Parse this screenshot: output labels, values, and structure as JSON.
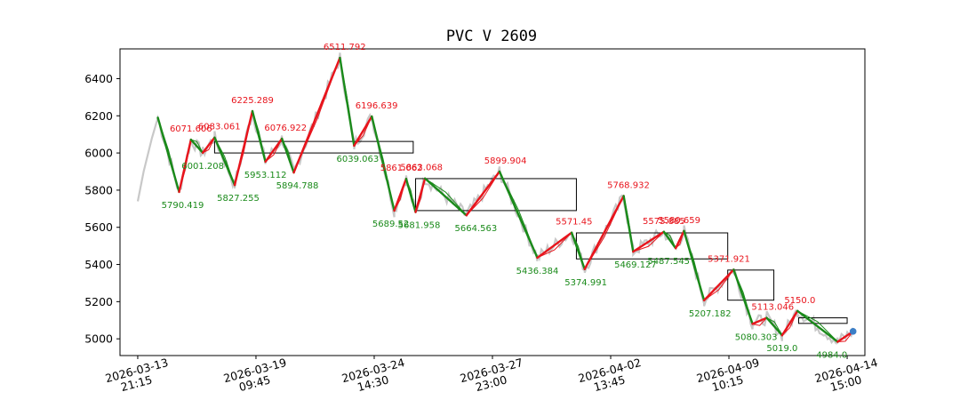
{
  "chart_data": {
    "type": "line",
    "title": "PVC V 2609",
    "xlabel": "",
    "ylabel": "",
    "ylim": [
      4910,
      6560
    ],
    "xlim": [
      -0.15,
      6.15
    ],
    "grid": false,
    "y_ticks": [
      5000,
      5200,
      5400,
      5600,
      5800,
      6000,
      6200,
      6400
    ],
    "x_ticks": [
      {
        "pos": 0,
        "label": [
          "2026-03-13",
          "21:15"
        ]
      },
      {
        "pos": 1,
        "label": [
          "2026-03-19",
          "09:45"
        ]
      },
      {
        "pos": 2,
        "label": [
          "2026-03-24",
          "14:30"
        ]
      },
      {
        "pos": 3,
        "label": [
          "2026-03-27",
          "23:00"
        ]
      },
      {
        "pos": 4,
        "label": [
          "2026-04-02",
          "13:45"
        ]
      },
      {
        "pos": 5,
        "label": [
          "2026-04-09",
          "10:15"
        ]
      },
      {
        "pos": 6,
        "label": [
          "2026-04-14",
          "15:00"
        ]
      }
    ],
    "colors": {
      "up": "#e8141c",
      "down": "#1a8a1a",
      "price": "#c8c8c8",
      "box": "#000000",
      "marker": "#3b7ec6"
    },
    "zigzag": [
      {
        "x": 0.17,
        "y": 6190
      },
      {
        "x": 0.35,
        "y": 5790.419,
        "label": "5790.419"
      },
      {
        "x": 0.45,
        "y": 6071.606,
        "label": "6071.606"
      },
      {
        "x": 0.55,
        "y": 6001.208,
        "label": "6001.208"
      },
      {
        "x": 0.65,
        "y": 6083.061,
        "label": "6083.061"
      },
      {
        "x": 0.82,
        "y": 5827.255,
        "label": "5827.255"
      },
      {
        "x": 0.97,
        "y": 6225.289,
        "label": "6225.289"
      },
      {
        "x": 1.08,
        "y": 5953.112,
        "label": "5953.112"
      },
      {
        "x": 1.22,
        "y": 6076.922,
        "label": "6076.922"
      },
      {
        "x": 1.32,
        "y": 5894.788,
        "label": "5894.788"
      },
      {
        "x": 1.71,
        "y": 6511.792,
        "label": "6511.792"
      },
      {
        "x": 1.83,
        "y": 6039.063,
        "label": "6039.063"
      },
      {
        "x": 1.98,
        "y": 6196.639,
        "label": "6196.639"
      },
      {
        "x": 2.17,
        "y": 5689.52,
        "label": "5689.52"
      },
      {
        "x": 2.27,
        "y": 5861.062,
        "label": "5861.062"
      },
      {
        "x": 2.35,
        "y": 5681.958,
        "label": "5681.958"
      },
      {
        "x": 2.43,
        "y": 5863.068,
        "label": "5863.068"
      },
      {
        "x": 2.78,
        "y": 5664.563,
        "label": "5664.563"
      },
      {
        "x": 3.06,
        "y": 5899.904,
        "label": "5899.904"
      },
      {
        "x": 3.38,
        "y": 5436.384,
        "label": "5436.384"
      },
      {
        "x": 3.67,
        "y": 5571.45,
        "label": "5571.45"
      },
      {
        "x": 3.78,
        "y": 5374.991,
        "label": "5374.991"
      },
      {
        "x": 4.11,
        "y": 5768.932,
        "label": "5768.932"
      },
      {
        "x": 4.19,
        "y": 5469.127,
        "label": "5469.127"
      },
      {
        "x": 4.45,
        "y": 5575.885,
        "label": "5575.885"
      },
      {
        "x": 4.55,
        "y": 5487.545,
        "label": "5487.545"
      },
      {
        "x": 4.62,
        "y": 5580.659,
        "label": "5580.659"
      },
      {
        "x": 4.79,
        "y": 5207.182,
        "label": "5207.182"
      },
      {
        "x": 5.04,
        "y": 5371.921,
        "label": "5371.921"
      },
      {
        "x": 5.2,
        "y": 5080.303,
        "label": "5080.303"
      },
      {
        "x": 5.32,
        "y": 5113.046,
        "label": "5113.046"
      },
      {
        "x": 5.45,
        "y": 5019.0,
        "label": "5019.0"
      },
      {
        "x": 5.58,
        "y": 5150.0,
        "label": "5150.0"
      },
      {
        "x": 5.92,
        "y": 4984.0,
        "label": "4984.0"
      },
      {
        "x": 6.05,
        "y": 5040
      }
    ],
    "annotations": [
      {
        "x": 0.45,
        "y": 6071.606,
        "text": "6071.606",
        "pos": "above",
        "dx": 0,
        "kind": "high"
      },
      {
        "x": 0.55,
        "y": 6001.208,
        "text": "6001.208",
        "pos": "below",
        "dx": 0,
        "kind": "low"
      },
      {
        "x": 0.69,
        "y": 6083.061,
        "text": "6083.061",
        "pos": "above",
        "dx": 0,
        "kind": "high"
      },
      {
        "x": 0.97,
        "y": 6225.289,
        "text": "6225.289",
        "pos": "above",
        "dx": 0,
        "kind": "high"
      },
      {
        "x": 0.38,
        "y": 5790.419,
        "text": "5790.419",
        "pos": "below",
        "dx": 0,
        "kind": "low"
      },
      {
        "x": 0.85,
        "y": 5827.255,
        "text": "5827.255",
        "pos": "below",
        "dx": 0,
        "kind": "low"
      },
      {
        "x": 1.08,
        "y": 5953.112,
        "text": "5953.112",
        "pos": "below",
        "dx": 0,
        "kind": "low"
      },
      {
        "x": 1.25,
        "y": 6076.922,
        "text": "6076.922",
        "pos": "above",
        "dx": 0,
        "kind": "high"
      },
      {
        "x": 1.35,
        "y": 5894.788,
        "text": "5894.788",
        "pos": "below",
        "dx": 0,
        "kind": "low"
      },
      {
        "x": 1.75,
        "y": 6511.792,
        "text": "6511.792",
        "pos": "above",
        "dx": 0,
        "kind": "high"
      },
      {
        "x": 1.86,
        "y": 6039.063,
        "text": "6039.063",
        "pos": "below",
        "dx": 0,
        "kind": "low"
      },
      {
        "x": 2.02,
        "y": 6196.639,
        "text": "6196.639",
        "pos": "above",
        "dx": 0,
        "kind": "high"
      },
      {
        "x": 2.23,
        "y": 5861.062,
        "text": "5861.062",
        "pos": "above",
        "dx": 0,
        "kind": "high"
      },
      {
        "x": 2.14,
        "y": 5689.52,
        "text": "5689.52",
        "pos": "below",
        "dx": 0,
        "kind": "low"
      },
      {
        "x": 2.4,
        "y": 5863.068,
        "text": "5863.068",
        "pos": "above",
        "dx": 0,
        "kind": "high"
      },
      {
        "x": 2.38,
        "y": 5681.958,
        "text": "5681.958",
        "pos": "below",
        "dx": 0,
        "kind": "low"
      },
      {
        "x": 2.86,
        "y": 5664.563,
        "text": "5664.563",
        "pos": "below",
        "dx": 0,
        "kind": "low"
      },
      {
        "x": 3.11,
        "y": 5899.904,
        "text": "5899.904",
        "pos": "above",
        "dx": 0,
        "kind": "high"
      },
      {
        "x": 3.38,
        "y": 5436.384,
        "text": "5436.384",
        "pos": "below",
        "dx": 0,
        "kind": "low"
      },
      {
        "x": 3.69,
        "y": 5571.45,
        "text": "5571.45",
        "pos": "above",
        "dx": 0,
        "kind": "high"
      },
      {
        "x": 3.79,
        "y": 5374.991,
        "text": "5374.991",
        "pos": "below",
        "dx": 0,
        "kind": "low"
      },
      {
        "x": 4.15,
        "y": 5768.932,
        "text": "5768.932",
        "pos": "above",
        "dx": 0,
        "kind": "high"
      },
      {
        "x": 4.21,
        "y": 5469.127,
        "text": "5469.127",
        "pos": "below",
        "dx": 0,
        "kind": "low"
      },
      {
        "x": 4.45,
        "y": 5575.885,
        "text": "5575.885",
        "pos": "above",
        "dx": 0,
        "kind": "high"
      },
      {
        "x": 4.58,
        "y": 5580.659,
        "text": "5580.659",
        "pos": "above",
        "dx": 0,
        "kind": "high"
      },
      {
        "x": 4.49,
        "y": 5487.545,
        "text": "5487.545",
        "pos": "below",
        "dx": 0,
        "kind": "low"
      },
      {
        "x": 4.84,
        "y": 5207.182,
        "text": "5207.182",
        "pos": "below",
        "dx": 0,
        "kind": "low"
      },
      {
        "x": 5.0,
        "y": 5371.921,
        "text": "5371.921",
        "pos": "above",
        "dx": 0,
        "kind": "high"
      },
      {
        "x": 5.23,
        "y": 5080.303,
        "text": "5080.303",
        "pos": "below",
        "dx": 0,
        "kind": "low"
      },
      {
        "x": 5.37,
        "y": 5113.046,
        "text": "5113.046",
        "pos": "above",
        "dx": 0,
        "kind": "high"
      },
      {
        "x": 5.45,
        "y": 5019.0,
        "text": "5019.0",
        "pos": "below",
        "dx": 0,
        "kind": "low"
      },
      {
        "x": 5.6,
        "y": 5150.0,
        "text": "5150.0",
        "pos": "above",
        "dx": 0,
        "kind": "high"
      },
      {
        "x": 5.87,
        "y": 4984.0,
        "text": "4984.0",
        "pos": "below",
        "dx": 0,
        "kind": "low"
      }
    ],
    "boxes": [
      {
        "x0": 0.65,
        "x1": 2.33,
        "y0": 6000,
        "y1": 6062
      },
      {
        "x0": 2.35,
        "x1": 3.71,
        "y0": 5690,
        "y1": 5862
      },
      {
        "x0": 3.71,
        "x1": 4.99,
        "y0": 5430,
        "y1": 5570
      },
      {
        "x0": 4.99,
        "x1": 5.38,
        "y0": 5208,
        "y1": 5370
      },
      {
        "x0": 5.59,
        "x1": 6.0,
        "y0": 5083,
        "y1": 5113
      }
    ],
    "last_point": {
      "x": 6.05,
      "y": 5040
    }
  }
}
